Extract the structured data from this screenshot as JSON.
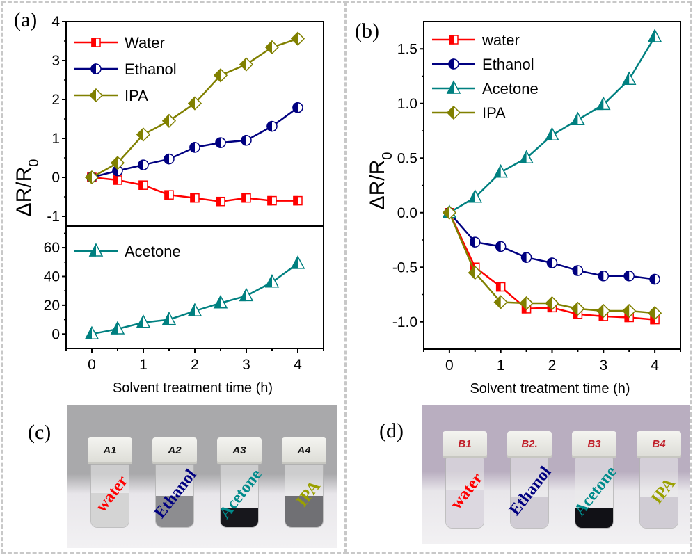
{
  "panels": {
    "a": {
      "letter": "(a)"
    },
    "b": {
      "letter": "(b)"
    },
    "c": {
      "letter": "(c)"
    },
    "d": {
      "letter": "(d)"
    }
  },
  "colors": {
    "water": "#ff0000",
    "ethanol": "#000080",
    "acetone": "#008080",
    "ipa": "#808000",
    "frame": "#c8c8c8"
  },
  "chart_data": [
    {
      "id": "a-upper",
      "type": "line",
      "title": "",
      "xlabel": "Solvent treatment time (h)",
      "ylabel": "ΔR/R0",
      "x": [
        0,
        0.5,
        1,
        1.5,
        2,
        2.5,
        3,
        3.5,
        4
      ],
      "xlim": [
        -0.5,
        4.5
      ],
      "ylim": [
        -1.25,
        4
      ],
      "yticks": [
        -1,
        0,
        1,
        2,
        3,
        4
      ],
      "ytick_labels": [
        "-1",
        "0",
        "1",
        "2",
        "3",
        "4"
      ],
      "legend_position": "top-left",
      "grid": false,
      "series": [
        {
          "name": "Water",
          "color": "#ff0000",
          "marker": "square",
          "values": [
            0,
            -0.07,
            -0.2,
            -0.45,
            -0.53,
            -0.62,
            -0.53,
            -0.6,
            -0.6
          ]
        },
        {
          "name": "Ethanol",
          "color": "#000080",
          "marker": "circle",
          "values": [
            0,
            0.17,
            0.32,
            0.47,
            0.77,
            0.89,
            0.95,
            1.31,
            1.79
          ]
        },
        {
          "name": "IPA",
          "color": "#808000",
          "marker": "diamond",
          "values": [
            0,
            0.37,
            1.1,
            1.45,
            1.9,
            2.62,
            2.9,
            3.34,
            3.56
          ]
        }
      ]
    },
    {
      "id": "a-lower",
      "type": "line",
      "title": "",
      "xlabel": "Solvent treatment time (h)",
      "ylabel": "ΔR/R0",
      "x": [
        0,
        0.5,
        1,
        1.5,
        2,
        2.5,
        3,
        3.5,
        4
      ],
      "xlim": [
        -0.5,
        4.5
      ],
      "ylim": [
        -10,
        75
      ],
      "yticks": [
        0,
        20,
        40,
        60
      ],
      "ytick_labels": [
        "0",
        "20",
        "40",
        "60"
      ],
      "xticks": [
        0,
        1,
        2,
        3,
        4
      ],
      "xtick_labels": [
        "0",
        "1",
        "2",
        "3",
        "4"
      ],
      "legend_position": "top-left",
      "grid": false,
      "series": [
        {
          "name": "Acetone",
          "color": "#008080",
          "marker": "triangle",
          "values": [
            0,
            3.5,
            8,
            10,
            16,
            21.5,
            26.5,
            36,
            49
          ]
        }
      ]
    },
    {
      "id": "b",
      "type": "line",
      "title": "",
      "xlabel": "Solvent treatment time (h)",
      "ylabel": "ΔR/R0",
      "x": [
        0,
        0.5,
        1,
        1.5,
        2,
        2.5,
        3,
        3.5,
        4
      ],
      "xlim": [
        -0.5,
        4.5
      ],
      "ylim": [
        -1.25,
        1.75
      ],
      "yticks": [
        -1.0,
        -0.5,
        0.0,
        0.5,
        1.0,
        1.5
      ],
      "ytick_labels": [
        "-1.0",
        "-0.5",
        "0.0",
        "0.5",
        "1.0",
        "1.5"
      ],
      "xticks": [
        0,
        1,
        2,
        3,
        4
      ],
      "xtick_labels": [
        "0",
        "1",
        "2",
        "3",
        "4"
      ],
      "legend_position": "top-left",
      "grid": false,
      "series": [
        {
          "name": "water",
          "color": "#ff0000",
          "marker": "square",
          "values": [
            0,
            -0.5,
            -0.68,
            -0.88,
            -0.87,
            -0.93,
            -0.95,
            -0.96,
            -0.98
          ]
        },
        {
          "name": "Ethanol",
          "color": "#000080",
          "marker": "circle",
          "values": [
            0,
            -0.27,
            -0.31,
            -0.41,
            -0.46,
            -0.53,
            -0.58,
            -0.58,
            -0.61
          ]
        },
        {
          "name": "Acetone",
          "color": "#008080",
          "marker": "triangle",
          "values": [
            0,
            0.14,
            0.37,
            0.5,
            0.71,
            0.85,
            0.99,
            1.22,
            1.61
          ]
        },
        {
          "name": "IPA",
          "color": "#808000",
          "marker": "diamond",
          "values": [
            0,
            -0.55,
            -0.82,
            -0.83,
            -0.83,
            -0.88,
            -0.9,
            -0.9,
            -0.92
          ]
        }
      ]
    }
  ],
  "photos": {
    "c": {
      "background": "#a9a9ab",
      "vials": [
        {
          "cap_label": "A1",
          "cap_color": "#111111",
          "text": "water",
          "text_color": "#ff0000",
          "liquid": "#d4d4d4",
          "liquid_level": 0.55
        },
        {
          "cap_label": "A2",
          "cap_color": "#111111",
          "text": "Ethanol",
          "text_color": "#000080",
          "liquid": "#8d8d90",
          "liquid_level": 0.5
        },
        {
          "cap_label": "A3",
          "cap_color": "#111111",
          "text": "Acetone",
          "text_color": "#008b8b",
          "liquid": "#17171c",
          "liquid_level": 0.3
        },
        {
          "cap_label": "A4",
          "cap_color": "#111111",
          "text": "IPA",
          "text_color": "#9aa000",
          "liquid": "#707074",
          "liquid_level": 0.5
        }
      ]
    },
    "d": {
      "background": "#b9aec0",
      "vials": [
        {
          "cap_label": "B1",
          "cap_color": "#c0202a",
          "text": "water",
          "text_color": "#ff0000",
          "liquid": "#dcd8e0",
          "liquid_level": 0.55
        },
        {
          "cap_label": "B2.",
          "cap_color": "#c0202a",
          "text": "Ethanol",
          "text_color": "#000080",
          "liquid": "#d0ccd4",
          "liquid_level": 0.45
        },
        {
          "cap_label": "B3",
          "cap_color": "#c0202a",
          "text": "Acetone",
          "text_color": "#008b8b",
          "liquid": "#111116",
          "liquid_level": 0.28
        },
        {
          "cap_label": "B4",
          "cap_color": "#c0202a",
          "text": "IPA",
          "text_color": "#9aa000",
          "liquid": "#d0ccd4",
          "liquid_level": 0.45
        }
      ]
    }
  }
}
